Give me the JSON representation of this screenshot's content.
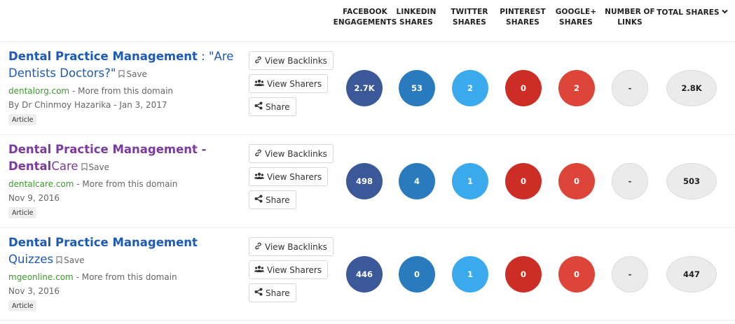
{
  "columns": {
    "facebook": [
      "FACEBOOK",
      "ENGAGEMENTS"
    ],
    "linkedin": [
      "LINKEDIN",
      "SHARES"
    ],
    "twitter": [
      "TWITTER",
      "SHARES"
    ],
    "pinterest": [
      "PINTEREST",
      "SHARES"
    ],
    "google": [
      "GOOGLE+",
      "SHARES"
    ],
    "links": [
      "NUMBER OF",
      "LINKS"
    ],
    "total": "TOTAL SHARES"
  },
  "buttons": {
    "backlinks": "View Backlinks",
    "sharers": "View Sharers",
    "share": "Share",
    "save": "Save"
  },
  "colors": {
    "facebook": "#3b5998",
    "linkedin": "#2a7bbd",
    "twitter": "#3aaaed",
    "pinterest": "#cc2e25",
    "google": "#dc4537",
    "link_blue": "#1c5ab5",
    "visited_purple": "#7a3a9e",
    "domain_green": "#3b9b2b"
  },
  "rows": [
    {
      "title_strong": "Dental Practice Management",
      "title_rest": " : \"Are Dentists Doctors?\"",
      "domain": "dentalorg.com",
      "more": " - More from this domain",
      "byline": "By Dr Chinmoy Hazarika - Jan 3, 2017",
      "tag": "Article",
      "facebook": "2.7K",
      "linkedin": "53",
      "twitter": "2",
      "pinterest": "0",
      "google": "2",
      "links": "-",
      "total": "2.8K"
    },
    {
      "title_strong": "Dental Practice Management - Dental",
      "title_rest": "Care",
      "domain": "dentalcare.com",
      "more": " - More from this domain",
      "byline": "Nov 9, 2016",
      "tag": "Article",
      "facebook": "498",
      "linkedin": "4",
      "twitter": "1",
      "pinterest": "0",
      "google": "0",
      "links": "-",
      "total": "503"
    },
    {
      "title_strong": "Dental Practice Management",
      "title_rest": " Quizzes",
      "domain": "mgeonline.com",
      "more": " - More from this domain",
      "byline": "Nov 3, 2016",
      "tag": "Article",
      "facebook": "446",
      "linkedin": "0",
      "twitter": "1",
      "pinterest": "0",
      "google": "0",
      "links": "-",
      "total": "447"
    }
  ]
}
